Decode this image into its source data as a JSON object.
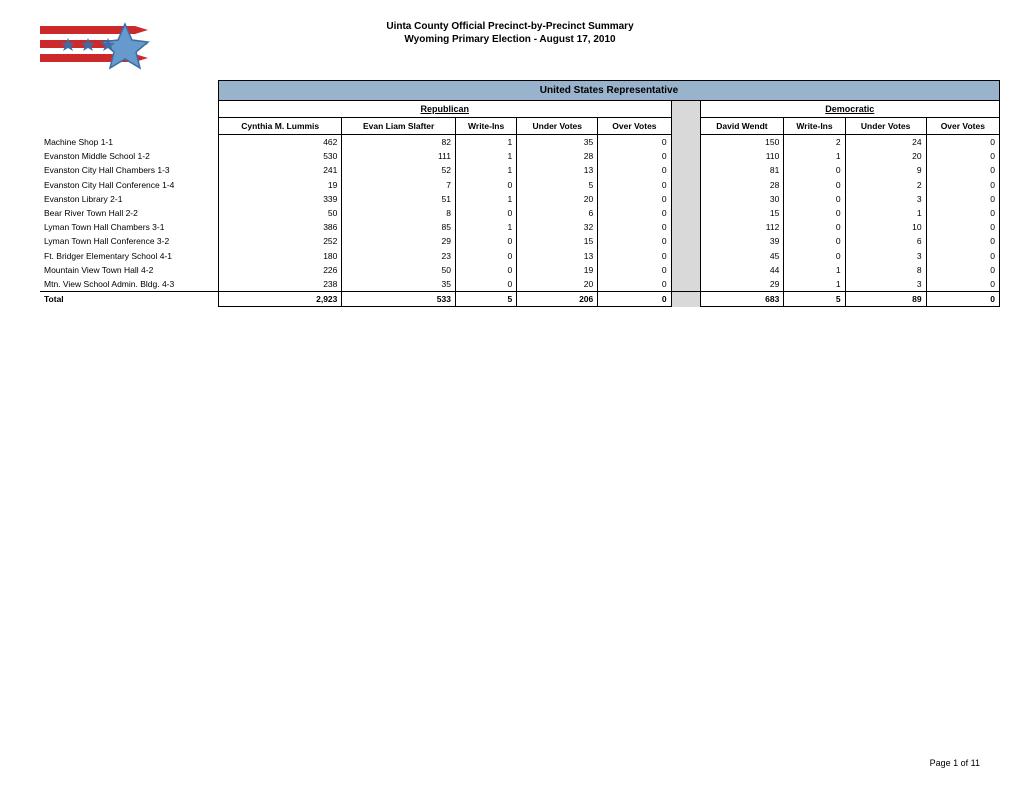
{
  "title_line1": "Uinta County Official Precinct-by-Precinct Summary",
  "title_line2": "Wyoming Primary Election - August 17, 2010",
  "race_title": "United States Representative",
  "parties": {
    "rep": "Republican",
    "dem": "Democratic"
  },
  "columns_rep": [
    "Cynthia M. Lummis",
    "Evan Liam Slafter",
    "Write-Ins",
    "Under Votes",
    "Over Votes"
  ],
  "columns_dem": [
    "David Wendt",
    "Write-Ins",
    "Under Votes",
    "Over Votes"
  ],
  "rows": [
    {
      "label": "Machine Shop 1-1",
      "rep": [
        "462",
        "82",
        "1",
        "35",
        "0"
      ],
      "dem": [
        "150",
        "2",
        "24",
        "0"
      ]
    },
    {
      "label": "Evanston Middle School 1-2",
      "rep": [
        "530",
        "111",
        "1",
        "28",
        "0"
      ],
      "dem": [
        "110",
        "1",
        "20",
        "0"
      ]
    },
    {
      "label": "Evanston City Hall Chambers 1-3",
      "rep": [
        "241",
        "52",
        "1",
        "13",
        "0"
      ],
      "dem": [
        "81",
        "0",
        "9",
        "0"
      ]
    },
    {
      "label": "Evanston City Hall Conference 1-4",
      "rep": [
        "19",
        "7",
        "0",
        "5",
        "0"
      ],
      "dem": [
        "28",
        "0",
        "2",
        "0"
      ]
    },
    {
      "label": "Evanston Library 2-1",
      "rep": [
        "339",
        "51",
        "1",
        "20",
        "0"
      ],
      "dem": [
        "30",
        "0",
        "3",
        "0"
      ]
    },
    {
      "label": "Bear River Town Hall 2-2",
      "rep": [
        "50",
        "8",
        "0",
        "6",
        "0"
      ],
      "dem": [
        "15",
        "0",
        "1",
        "0"
      ]
    },
    {
      "label": "Lyman Town Hall Chambers 3-1",
      "rep": [
        "386",
        "85",
        "1",
        "32",
        "0"
      ],
      "dem": [
        "112",
        "0",
        "10",
        "0"
      ]
    },
    {
      "label": "Lyman Town Hall Conference 3-2",
      "rep": [
        "252",
        "29",
        "0",
        "15",
        "0"
      ],
      "dem": [
        "39",
        "0",
        "6",
        "0"
      ]
    },
    {
      "label": "Ft. Bridger Elementary School 4-1",
      "rep": [
        "180",
        "23",
        "0",
        "13",
        "0"
      ],
      "dem": [
        "45",
        "0",
        "3",
        "0"
      ]
    },
    {
      "label": "Mountain View Town Hall 4-2",
      "rep": [
        "226",
        "50",
        "0",
        "19",
        "0"
      ],
      "dem": [
        "44",
        "1",
        "8",
        "0"
      ]
    },
    {
      "label": "Mtn. View School Admin. Bldg. 4-3",
      "rep": [
        "238",
        "35",
        "0",
        "20",
        "0"
      ],
      "dem": [
        "29",
        "1",
        "3",
        "0"
      ]
    }
  ],
  "total": {
    "label": "Total",
    "rep": [
      "2,923",
      "533",
      "5",
      "206",
      "0"
    ],
    "dem": [
      "683",
      "5",
      "89",
      "0"
    ]
  },
  "footer": "Page 1 of 11",
  "colors": {
    "race_header_bg": "#99b3cc",
    "gap_bg": "#d9d9d9",
    "logo_red": "#cc2a2a",
    "logo_blue": "#3a6ea5",
    "logo_star_fill": "#6699cc"
  }
}
